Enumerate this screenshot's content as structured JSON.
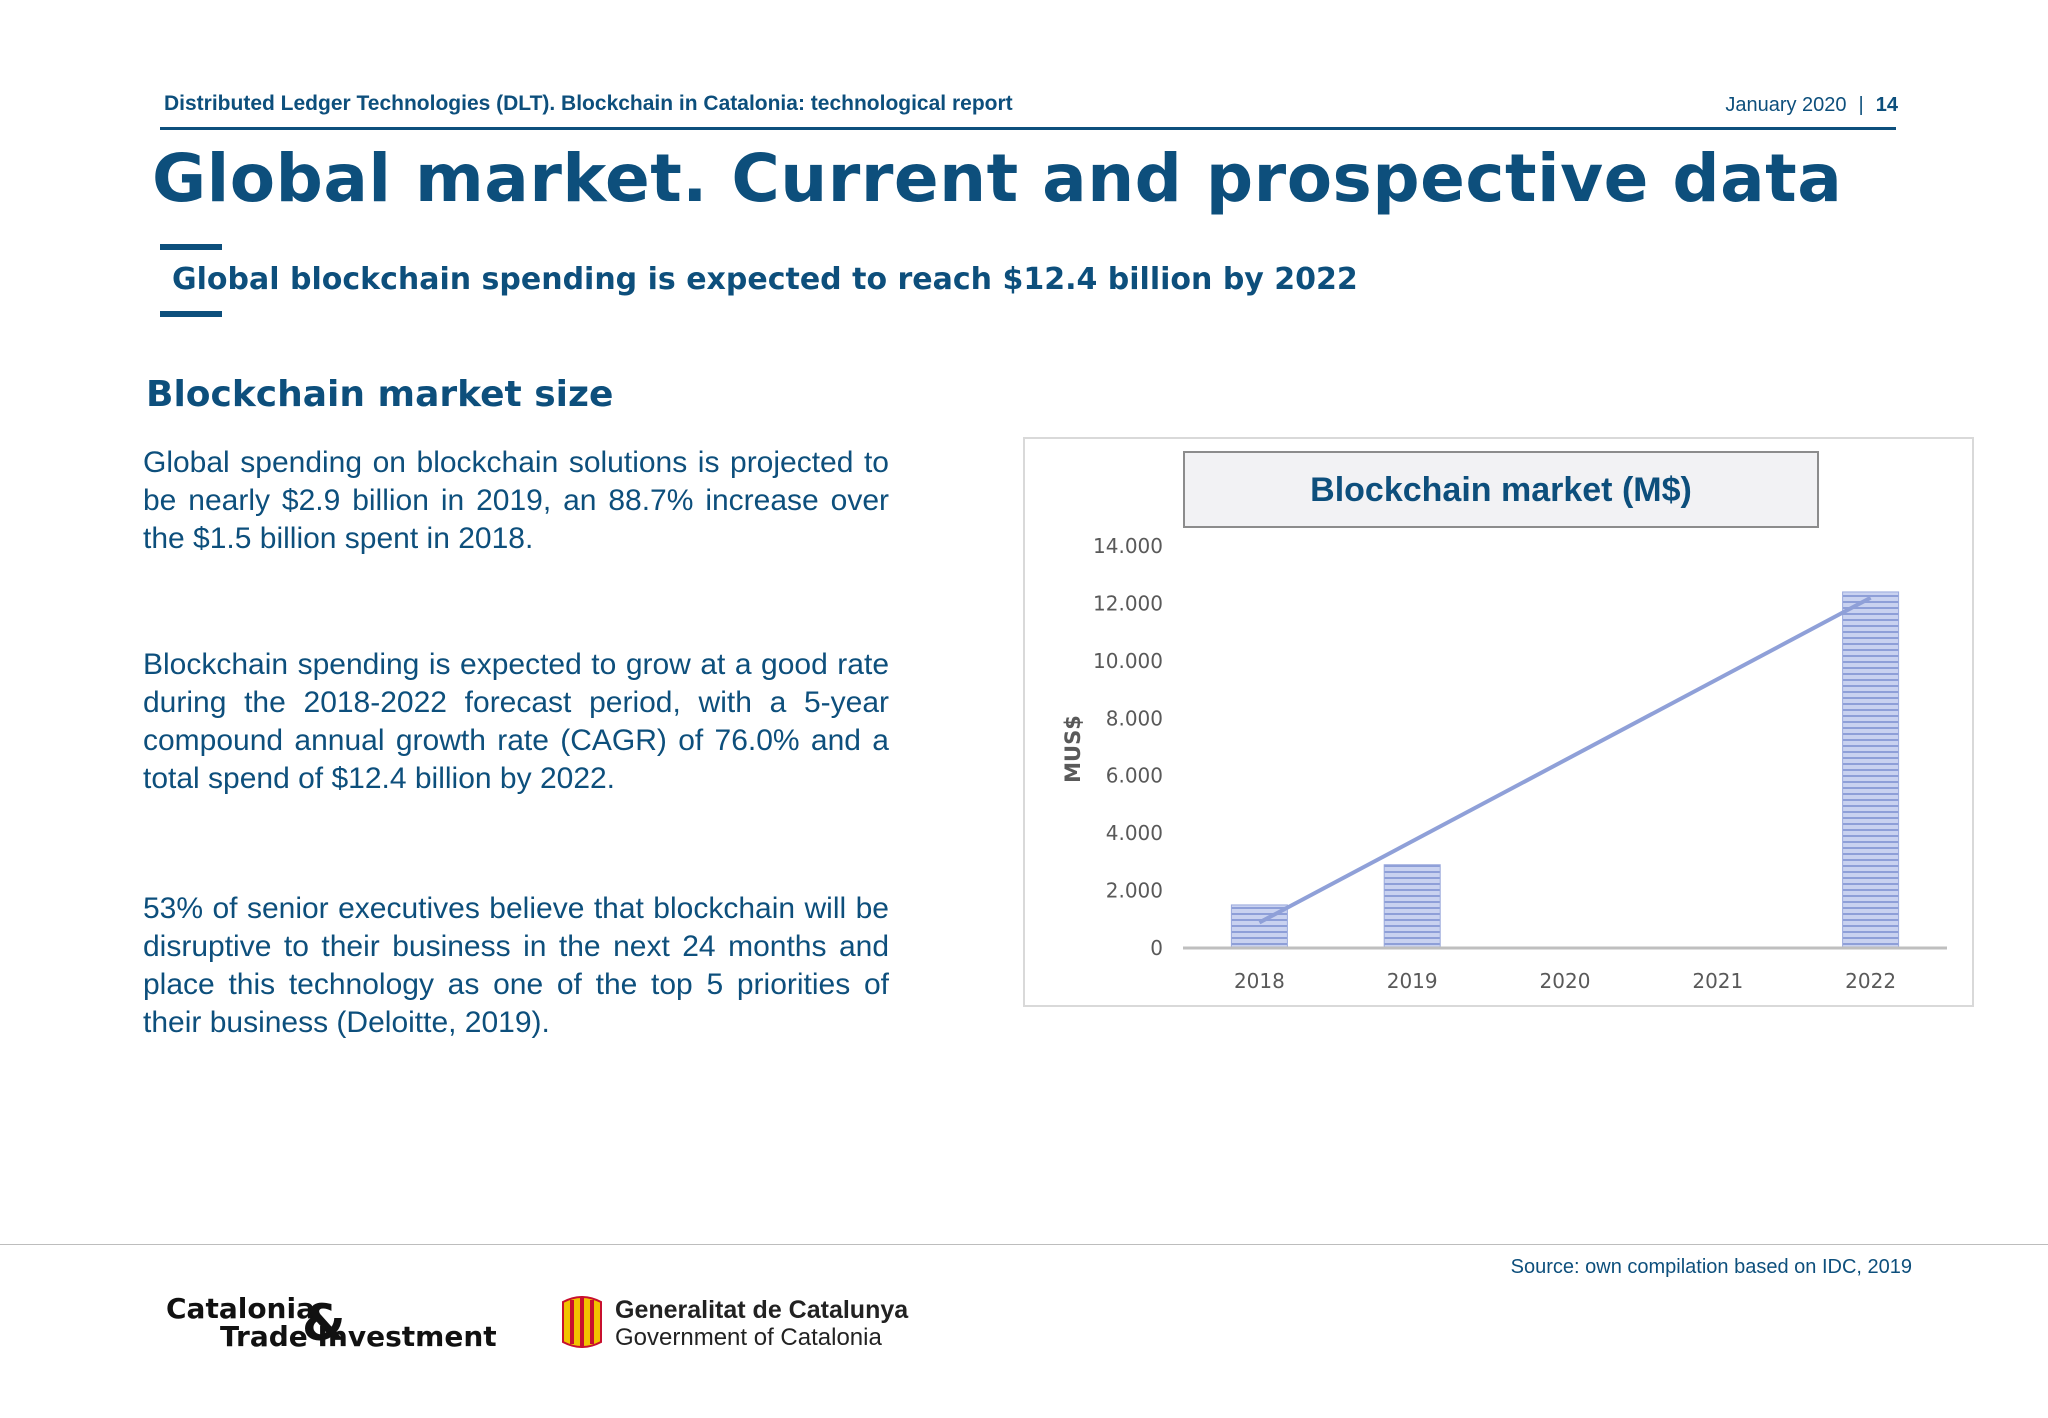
{
  "header": {
    "title": "Distributed Ledger Technologies (DLT). Blockchain in Catalonia: technological report",
    "date": "January 2020",
    "separator": "|",
    "page_number": "14"
  },
  "page_title": "Global market. Current and prospective data",
  "subtitle": "Global blockchain spending is expected to reach $12.4 billion by 2022",
  "section_heading": "Blockchain market size",
  "paragraphs": [
    "Global spending on blockchain solutions is projected to be nearly $2.9 billion in 2019, an 88.7% increase over the $1.5 billion spent in 2018.",
    "Blockchain spending is expected to grow at a good rate during the 2018-2022 forecast period, with a 5-year compound annual growth rate (CAGR) of 76.0% and a total spend of $12.4 billion by 2022.",
    "53% of senior executives believe that blockchain will be disruptive to their business in the next 24 months and place this technology as one of the top 5 priorities of their business (Deloitte, 2019)."
  ],
  "chart_data": {
    "type": "bar",
    "title": "Blockchain market (M$)",
    "xlabel": "",
    "ylabel": "MUS$",
    "categories": [
      "2018",
      "2019",
      "2020",
      "2021",
      "2022"
    ],
    "values": [
      1500,
      2900,
      null,
      null,
      12400
    ],
    "ylim": [
      0,
      14000
    ],
    "yticks": [
      0,
      2000,
      4000,
      6000,
      8000,
      10000,
      12000,
      14000
    ],
    "ytick_labels": [
      "0",
      "2.000",
      "4.000",
      "6.000",
      "8.000",
      "10.000",
      "12.000",
      "14.000"
    ],
    "trendline": true,
    "grid": false,
    "colors": {
      "bar": "#9aa9dc",
      "trend": "#8fa0d8",
      "axis": "#bfbfbf"
    }
  },
  "source": "Source: own compilation based on IDC, 2019",
  "logos": {
    "cti": {
      "line1": "Catalonia",
      "amp": "&",
      "line2": "Trade  Investment"
    },
    "generalitat": {
      "line1": "Generalitat de Catalunya",
      "line2": "Government of Catalonia"
    }
  },
  "colors": {
    "brand": "#0d4f7c"
  }
}
